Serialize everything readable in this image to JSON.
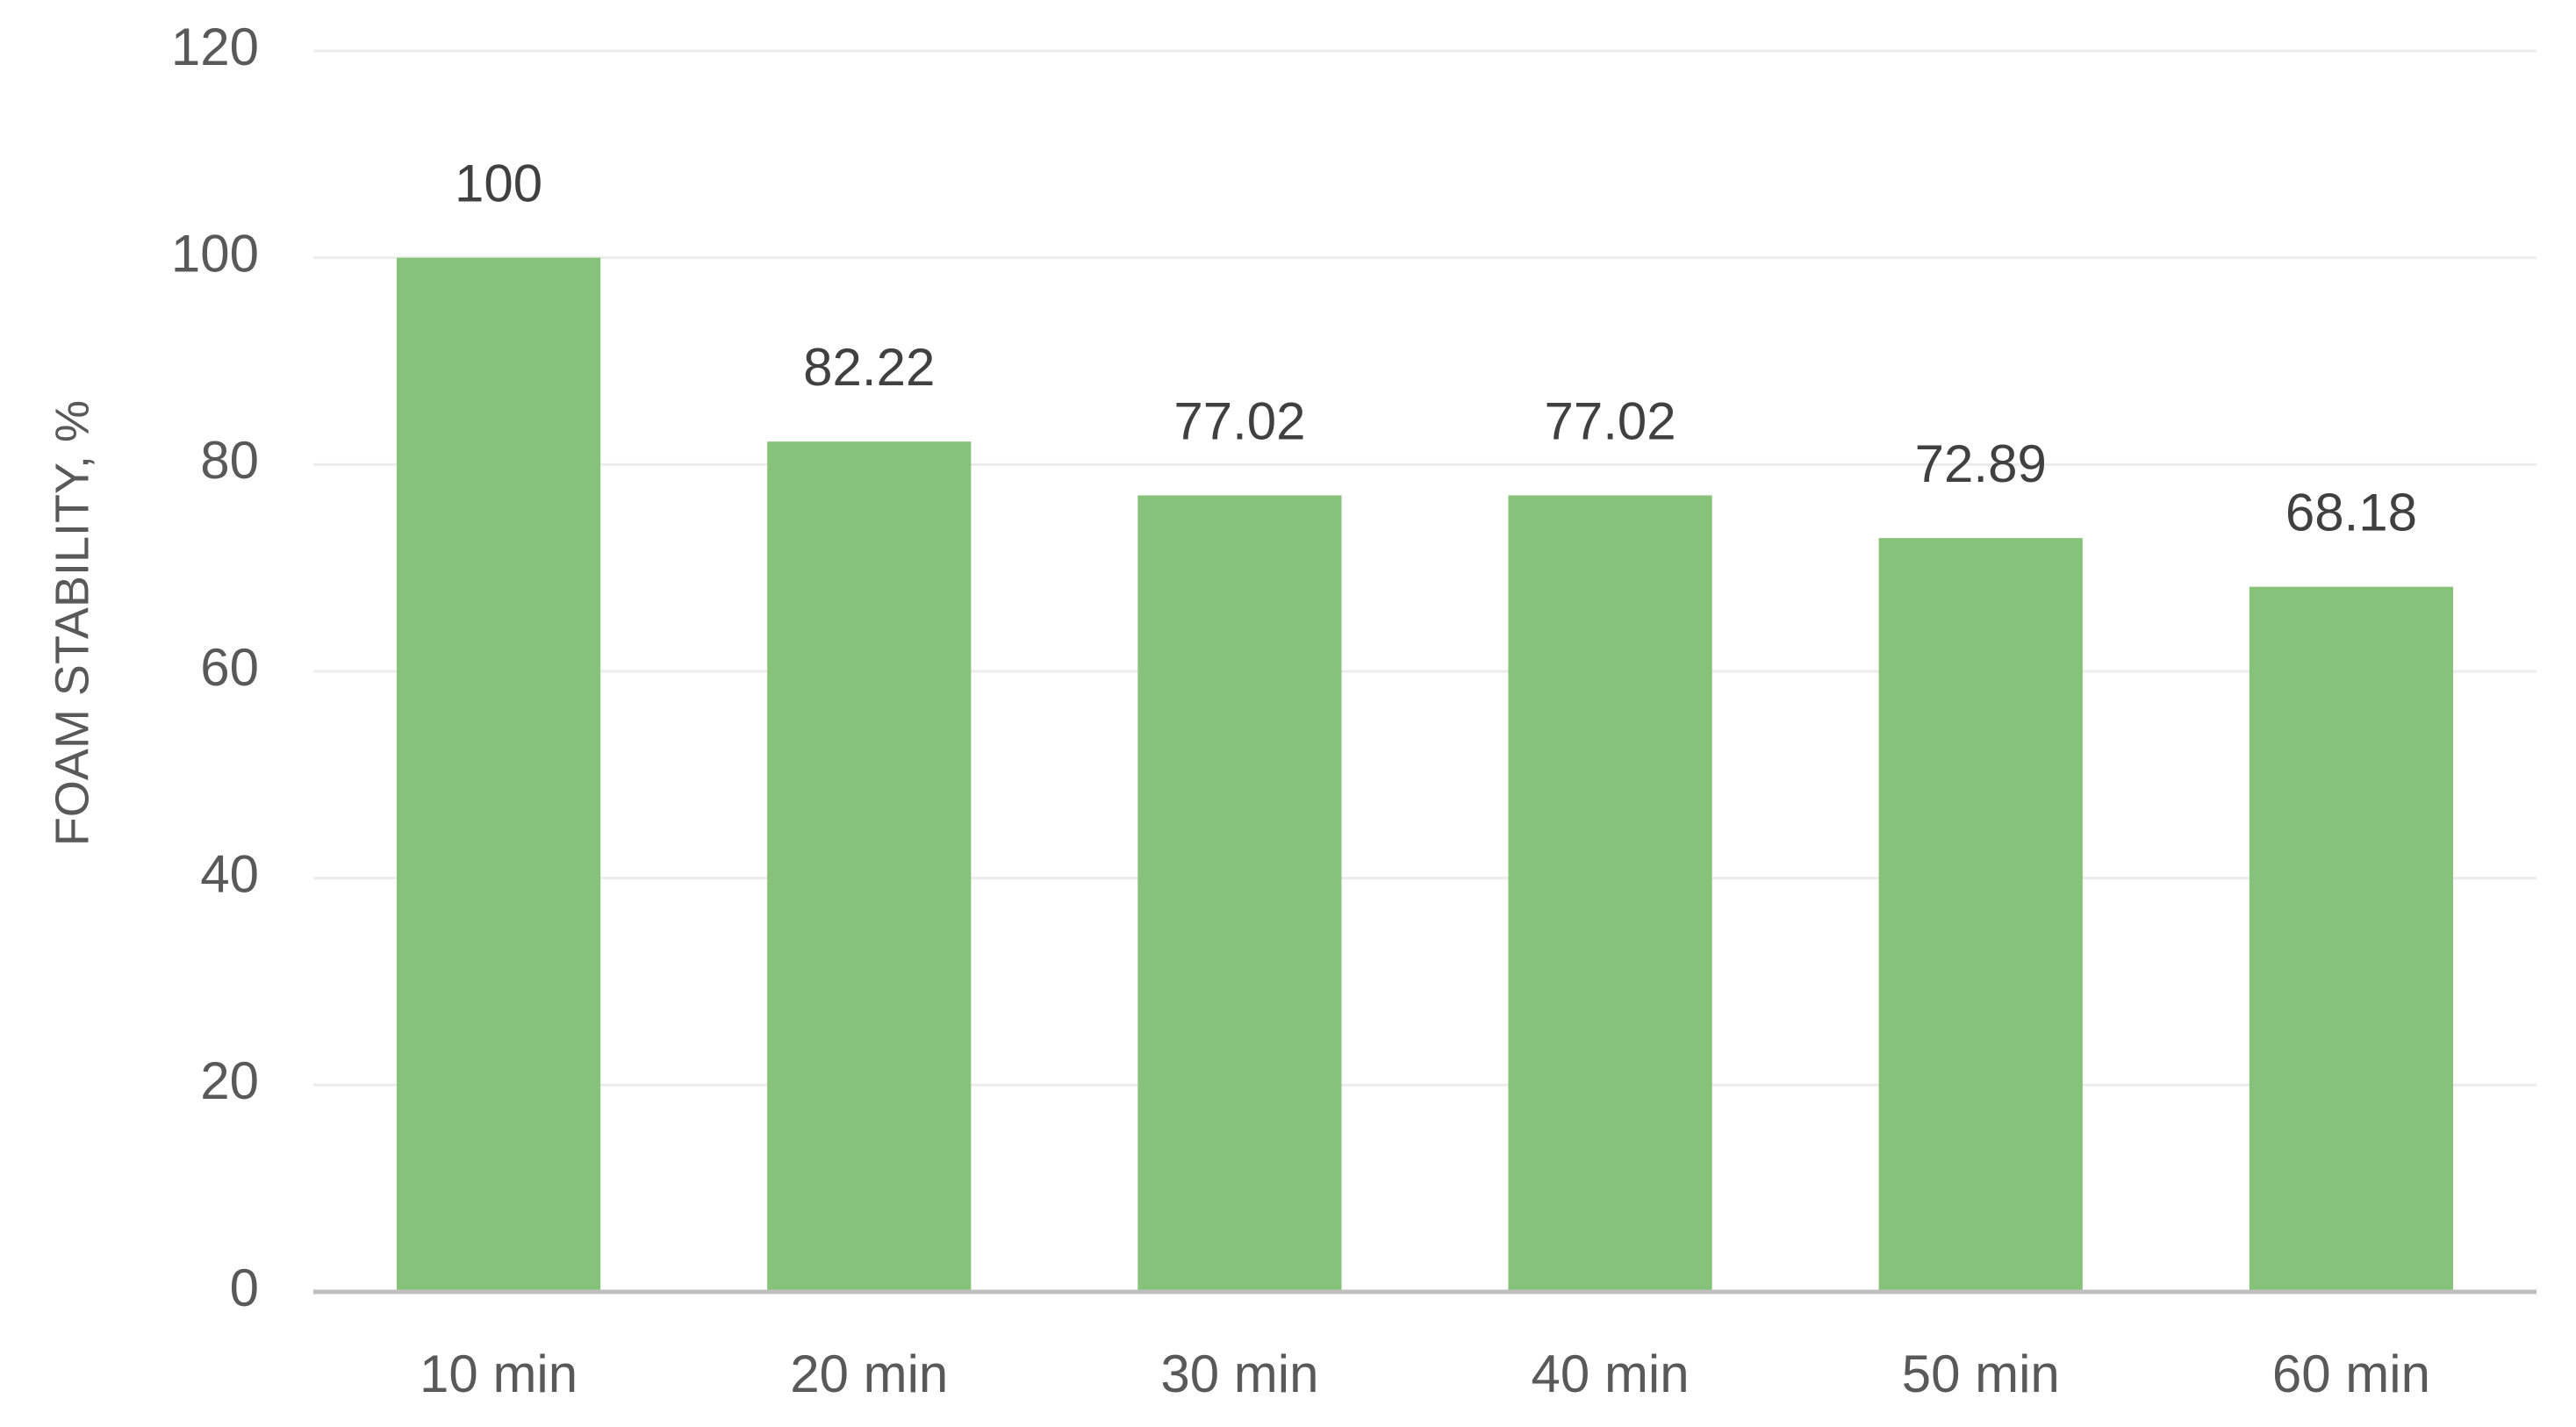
{
  "chart_data": {
    "type": "bar",
    "y_axis_label": "FOAM STABILITY, %",
    "categories": [
      "10 min",
      "20 min",
      "30 min",
      "40 min",
      "50 min",
      "60 min"
    ],
    "values": [
      100,
      82.22,
      77.02,
      77.02,
      72.89,
      68.18
    ],
    "color": "#86c27a",
    "ylim": [
      0,
      120
    ],
    "yticks": [
      0,
      20,
      40,
      60,
      80,
      100,
      120
    ],
    "grid": true
  }
}
